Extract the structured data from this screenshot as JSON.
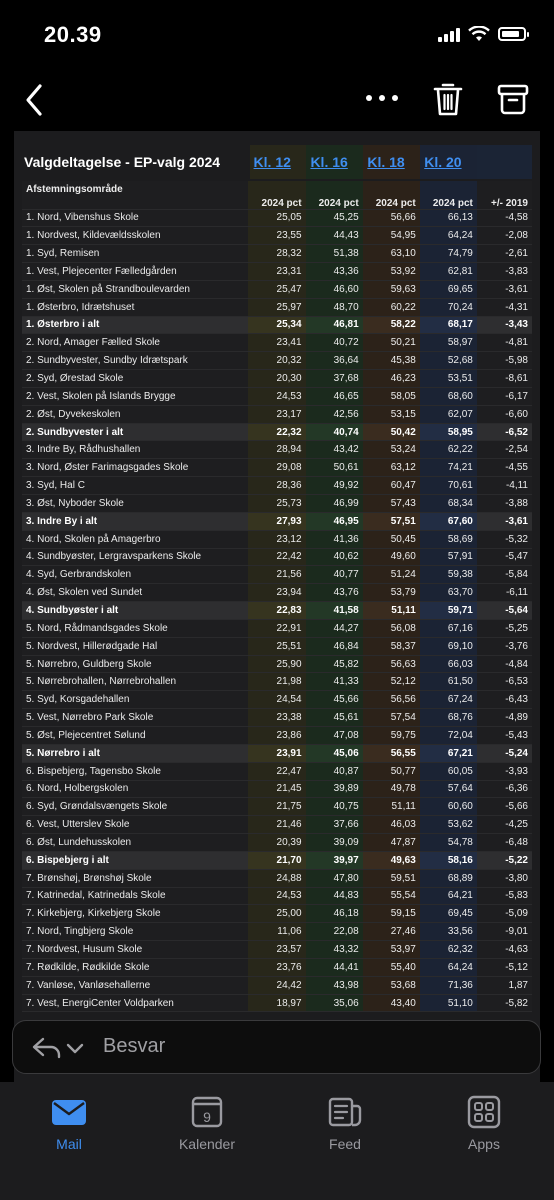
{
  "status": {
    "time": "20.39"
  },
  "sheet": {
    "title": "Valgdeltagelse - EP-valg 2024",
    "kl_links": [
      "Kl. 12",
      "Kl. 16",
      "Kl. 18",
      "Kl. 20"
    ],
    "header": {
      "area": "Afstemningsområde",
      "cols": [
        "2024 pct",
        "2024 pct",
        "2024 pct",
        "2024 pct",
        "+/- 2019"
      ]
    },
    "rows": [
      {
        "name": "1. Nord, Vibenshus Skole",
        "v": [
          "25,05",
          "45,25",
          "56,66",
          "66,13",
          "-4,58"
        ],
        "total": false
      },
      {
        "name": "1. Nordvest, Kildevældsskolen",
        "v": [
          "23,55",
          "44,43",
          "54,95",
          "64,24",
          "-2,08"
        ],
        "total": false
      },
      {
        "name": "1. Syd, Remisen",
        "v": [
          "28,32",
          "51,38",
          "63,10",
          "74,79",
          "-2,61"
        ],
        "total": false
      },
      {
        "name": "1. Vest, Plejecenter Fælledgården",
        "v": [
          "23,31",
          "43,36",
          "53,92",
          "62,81",
          "-3,83"
        ],
        "total": false
      },
      {
        "name": "1. Øst, Skolen på Strandboulevarden",
        "v": [
          "25,47",
          "46,60",
          "59,63",
          "69,65",
          "-3,61"
        ],
        "total": false
      },
      {
        "name": "1. Østerbro, Idrætshuset",
        "v": [
          "25,97",
          "48,70",
          "60,22",
          "70,24",
          "-4,31"
        ],
        "total": false
      },
      {
        "name": "1. Østerbro i alt",
        "v": [
          "25,34",
          "46,81",
          "58,22",
          "68,17",
          "-3,43"
        ],
        "total": true
      },
      {
        "name": "2. Nord, Amager Fælled Skole",
        "v": [
          "23,41",
          "40,72",
          "50,21",
          "58,97",
          "-4,81"
        ],
        "total": false
      },
      {
        "name": "2. Sundbyvester, Sundby Idrætspark",
        "v": [
          "20,32",
          "36,64",
          "45,38",
          "52,68",
          "-5,98"
        ],
        "total": false
      },
      {
        "name": "2. Syd, Ørestad Skole",
        "v": [
          "20,30",
          "37,68",
          "46,23",
          "53,51",
          "-8,61"
        ],
        "total": false
      },
      {
        "name": "2. Vest, Skolen på Islands Brygge",
        "v": [
          "24,53",
          "46,65",
          "58,05",
          "68,60",
          "-6,17"
        ],
        "total": false
      },
      {
        "name": "2. Øst, Dyvekeskolen",
        "v": [
          "23,17",
          "42,56",
          "53,15",
          "62,07",
          "-6,60"
        ],
        "total": false
      },
      {
        "name": "2. Sundbyvester i alt",
        "v": [
          "22,32",
          "40,74",
          "50,42",
          "58,95",
          "-6,52"
        ],
        "total": true
      },
      {
        "name": "3. Indre By, Rådhushallen",
        "v": [
          "28,94",
          "43,42",
          "53,24",
          "62,22",
          "-2,54"
        ],
        "total": false
      },
      {
        "name": "3. Nord, Øster Farimagsgades Skole",
        "v": [
          "29,08",
          "50,61",
          "63,12",
          "74,21",
          "-4,55"
        ],
        "total": false
      },
      {
        "name": "3. Syd, Hal C",
        "v": [
          "28,36",
          "49,92",
          "60,47",
          "70,61",
          "-4,11"
        ],
        "total": false
      },
      {
        "name": "3. Øst, Nyboder Skole",
        "v": [
          "25,73",
          "46,99",
          "57,43",
          "68,34",
          "-3,88"
        ],
        "total": false
      },
      {
        "name": "3. Indre By i alt",
        "v": [
          "27,93",
          "46,95",
          "57,51",
          "67,60",
          "-3,61"
        ],
        "total": true
      },
      {
        "name": "4. Nord, Skolen på Amagerbro",
        "v": [
          "23,12",
          "41,36",
          "50,45",
          "58,69",
          "-5,32"
        ],
        "total": false
      },
      {
        "name": "4. Sundbyøster, Lergravsparkens Skole",
        "v": [
          "22,42",
          "40,62",
          "49,60",
          "57,91",
          "-5,47"
        ],
        "total": false
      },
      {
        "name": "4. Syd, Gerbrandskolen",
        "v": [
          "21,56",
          "40,77",
          "51,24",
          "59,38",
          "-5,84"
        ],
        "total": false
      },
      {
        "name": "4. Øst, Skolen ved Sundet",
        "v": [
          "23,94",
          "43,76",
          "53,79",
          "63,70",
          "-6,11"
        ],
        "total": false
      },
      {
        "name": "4. Sundbyøster i alt",
        "v": [
          "22,83",
          "41,58",
          "51,11",
          "59,71",
          "-5,64"
        ],
        "total": true
      },
      {
        "name": "5. Nord, Rådmandsgades Skole",
        "v": [
          "22,91",
          "44,27",
          "56,08",
          "67,16",
          "-5,25"
        ],
        "total": false
      },
      {
        "name": "5. Nordvest, Hillerødgade Hal",
        "v": [
          "25,51",
          "46,84",
          "58,37",
          "69,10",
          "-3,76"
        ],
        "total": false
      },
      {
        "name": "5. Nørrebro, Guldberg Skole",
        "v": [
          "25,90",
          "45,82",
          "56,63",
          "66,03",
          "-4,84"
        ],
        "total": false
      },
      {
        "name": "5. Nørrebrohallen, Nørrebrohallen",
        "v": [
          "21,98",
          "41,33",
          "52,12",
          "61,50",
          "-6,53"
        ],
        "total": false
      },
      {
        "name": "5. Syd, Korsgadehallen",
        "v": [
          "24,54",
          "45,66",
          "56,56",
          "67,24",
          "-6,43"
        ],
        "total": false
      },
      {
        "name": "5. Vest, Nørrebro Park Skole",
        "v": [
          "23,38",
          "45,61",
          "57,54",
          "68,76",
          "-4,89"
        ],
        "total": false
      },
      {
        "name": "5. Øst, Plejecentret Sølund",
        "v": [
          "23,86",
          "47,08",
          "59,75",
          "72,04",
          "-5,43"
        ],
        "total": false
      },
      {
        "name": "5. Nørrebro i alt",
        "v": [
          "23,91",
          "45,06",
          "56,55",
          "67,21",
          "-5,24"
        ],
        "total": true
      },
      {
        "name": "6. Bispebjerg, Tagensbo Skole",
        "v": [
          "22,47",
          "40,87",
          "50,77",
          "60,05",
          "-3,93"
        ],
        "total": false
      },
      {
        "name": "6. Nord, Holbergskolen",
        "v": [
          "21,45",
          "39,89",
          "49,78",
          "57,64",
          "-6,36"
        ],
        "total": false
      },
      {
        "name": "6. Syd, Grøndalsvængets Skole",
        "v": [
          "21,75",
          "40,75",
          "51,11",
          "60,60",
          "-5,66"
        ],
        "total": false
      },
      {
        "name": "6. Vest, Utterslev Skole",
        "v": [
          "21,46",
          "37,66",
          "46,03",
          "53,62",
          "-4,25"
        ],
        "total": false
      },
      {
        "name": "6. Øst, Lundehusskolen",
        "v": [
          "20,39",
          "39,09",
          "47,87",
          "54,78",
          "-6,48"
        ],
        "total": false
      },
      {
        "name": "6. Bispebjerg i alt",
        "v": [
          "21,70",
          "39,97",
          "49,63",
          "58,16",
          "-5,22"
        ],
        "total": true
      },
      {
        "name": "7. Brønshøj, Brønshøj Skole",
        "v": [
          "24,88",
          "47,80",
          "59,51",
          "68,89",
          "-3,80"
        ],
        "total": false
      },
      {
        "name": "7. Katrinedal, Katrinedals Skole",
        "v": [
          "24,53",
          "44,83",
          "55,54",
          "64,21",
          "-5,83"
        ],
        "total": false
      },
      {
        "name": "7. Kirkebjerg, Kirkebjerg Skole",
        "v": [
          "25,00",
          "46,18",
          "59,15",
          "69,45",
          "-5,09"
        ],
        "total": false
      },
      {
        "name": "7. Nord, Tingbjerg Skole",
        "v": [
          "11,06",
          "22,08",
          "27,46",
          "33,56",
          "-9,01"
        ],
        "total": false
      },
      {
        "name": "7. Nordvest, Husum Skole",
        "v": [
          "23,57",
          "43,32",
          "53,97",
          "62,32",
          "-4,63"
        ],
        "total": false
      },
      {
        "name": "7. Rødkilde, Rødkilde Skole",
        "v": [
          "23,76",
          "44,41",
          "55,40",
          "64,24",
          "-5,12"
        ],
        "total": false
      },
      {
        "name": "7. Vanløse, Vanløsehallerne",
        "v": [
          "24,42",
          "43,98",
          "53,68",
          "71,36",
          "1,87"
        ],
        "total": false
      },
      {
        "name": "7. Vest, EnergiCenter Voldparken",
        "v": [
          "18,97",
          "35,06",
          "43,40",
          "51,10",
          "-5,82"
        ],
        "total": false
      }
    ]
  },
  "reply": {
    "placeholder": "Besvar"
  },
  "tabs": [
    {
      "label": "Mail",
      "icon": "mail-icon",
      "active": true
    },
    {
      "label": "Kalender",
      "icon": "calendar-icon",
      "active": false,
      "badge": "9"
    },
    {
      "label": "Feed",
      "icon": "feed-icon",
      "active": false
    },
    {
      "label": "Apps",
      "icon": "apps-icon",
      "active": false
    }
  ],
  "colors": {
    "accent": "#3f8ef0",
    "background": "#000000",
    "panel": "#1c1c1e"
  }
}
